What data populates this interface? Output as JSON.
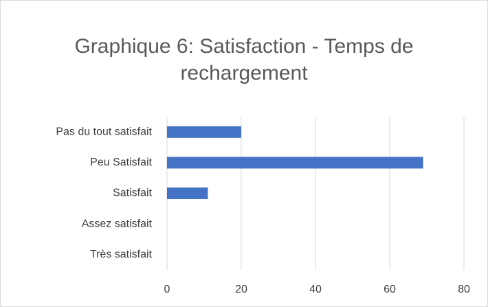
{
  "chart_data": {
    "type": "bar",
    "orientation": "horizontal",
    "title": "Graphique 6: Satisfaction - Temps de rechargement",
    "categories": [
      "Pas du tout satisfait",
      "Peu Satisfait",
      "Satisfait",
      "Assez satisfait",
      "Très satisfait"
    ],
    "values": [
      20,
      69,
      11,
      0,
      0
    ],
    "color": "#4472c4",
    "xlim": [
      0,
      80
    ],
    "xticks": [
      0,
      20,
      40,
      60,
      80
    ],
    "grid": true
  }
}
